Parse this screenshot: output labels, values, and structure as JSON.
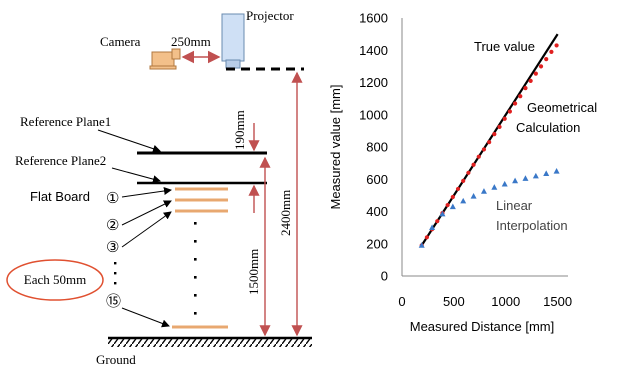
{
  "diagram": {
    "camera_label": "Camera",
    "projector_label": "Projector",
    "camera_distance": "250mm",
    "ref_plane1": "Reference Plane1",
    "ref_plane2": "Reference Plane2",
    "flat_board": "Flat Board",
    "board_1": "①",
    "board_2": "②",
    "board_3": "③",
    "board_15": "⑮",
    "spacing": "Each 50mm",
    "ground": "Ground",
    "dim_190": "190mm",
    "dim_1500": "1500mm",
    "dim_2400": "2400mm",
    "colors": {
      "board": "#e8a870",
      "spacing_ellipse": "#e05030",
      "dimension_arrow": "#c05050",
      "projector": "#cfe0f5",
      "camera": "#f3c08a"
    }
  },
  "chart_data": {
    "type": "scatter",
    "xlabel": "Measured Distance  [mm]",
    "ylabel": "Measured value  [mm]",
    "xlim": [
      0,
      1600
    ],
    "ylim": [
      0,
      1600
    ],
    "xticks": [
      "0",
      "500",
      "1000",
      "1500"
    ],
    "yticks": [
      "0",
      "200",
      "400",
      "600",
      "800",
      "1000",
      "1200",
      "1400",
      "1600"
    ],
    "series": [
      {
        "name": "True value",
        "kind": "line",
        "color": "#000000",
        "x": [
          190,
          1500
        ],
        "y": [
          190,
          1500
        ]
      },
      {
        "name": "Geometrical Calculation",
        "kind": "markers",
        "marker": "circle",
        "color": "#e02020",
        "x": [
          190,
          240,
          290,
          340,
          390,
          440,
          490,
          540,
          590,
          640,
          690,
          740,
          790,
          840,
          890,
          940,
          990,
          1040,
          1090,
          1140,
          1190,
          1240,
          1290,
          1340,
          1390,
          1440,
          1490
        ],
        "y": [
          190,
          240,
          290,
          340,
          390,
          440,
          490,
          540,
          590,
          640,
          690,
          740,
          785,
          830,
          880,
          925,
          975,
          1020,
          1070,
          1115,
          1165,
          1210,
          1255,
          1300,
          1345,
          1390,
          1430
        ]
      },
      {
        "name": "Linear Interpolation",
        "kind": "markers",
        "marker": "triangle",
        "color": "#3a78c8",
        "x": [
          190,
          290,
          390,
          490,
          590,
          690,
          790,
          890,
          990,
          1090,
          1190,
          1290,
          1390,
          1490
        ],
        "y": [
          190,
          300,
          385,
          430,
          465,
          495,
          525,
          550,
          570,
          590,
          605,
          620,
          635,
          650
        ]
      }
    ]
  }
}
